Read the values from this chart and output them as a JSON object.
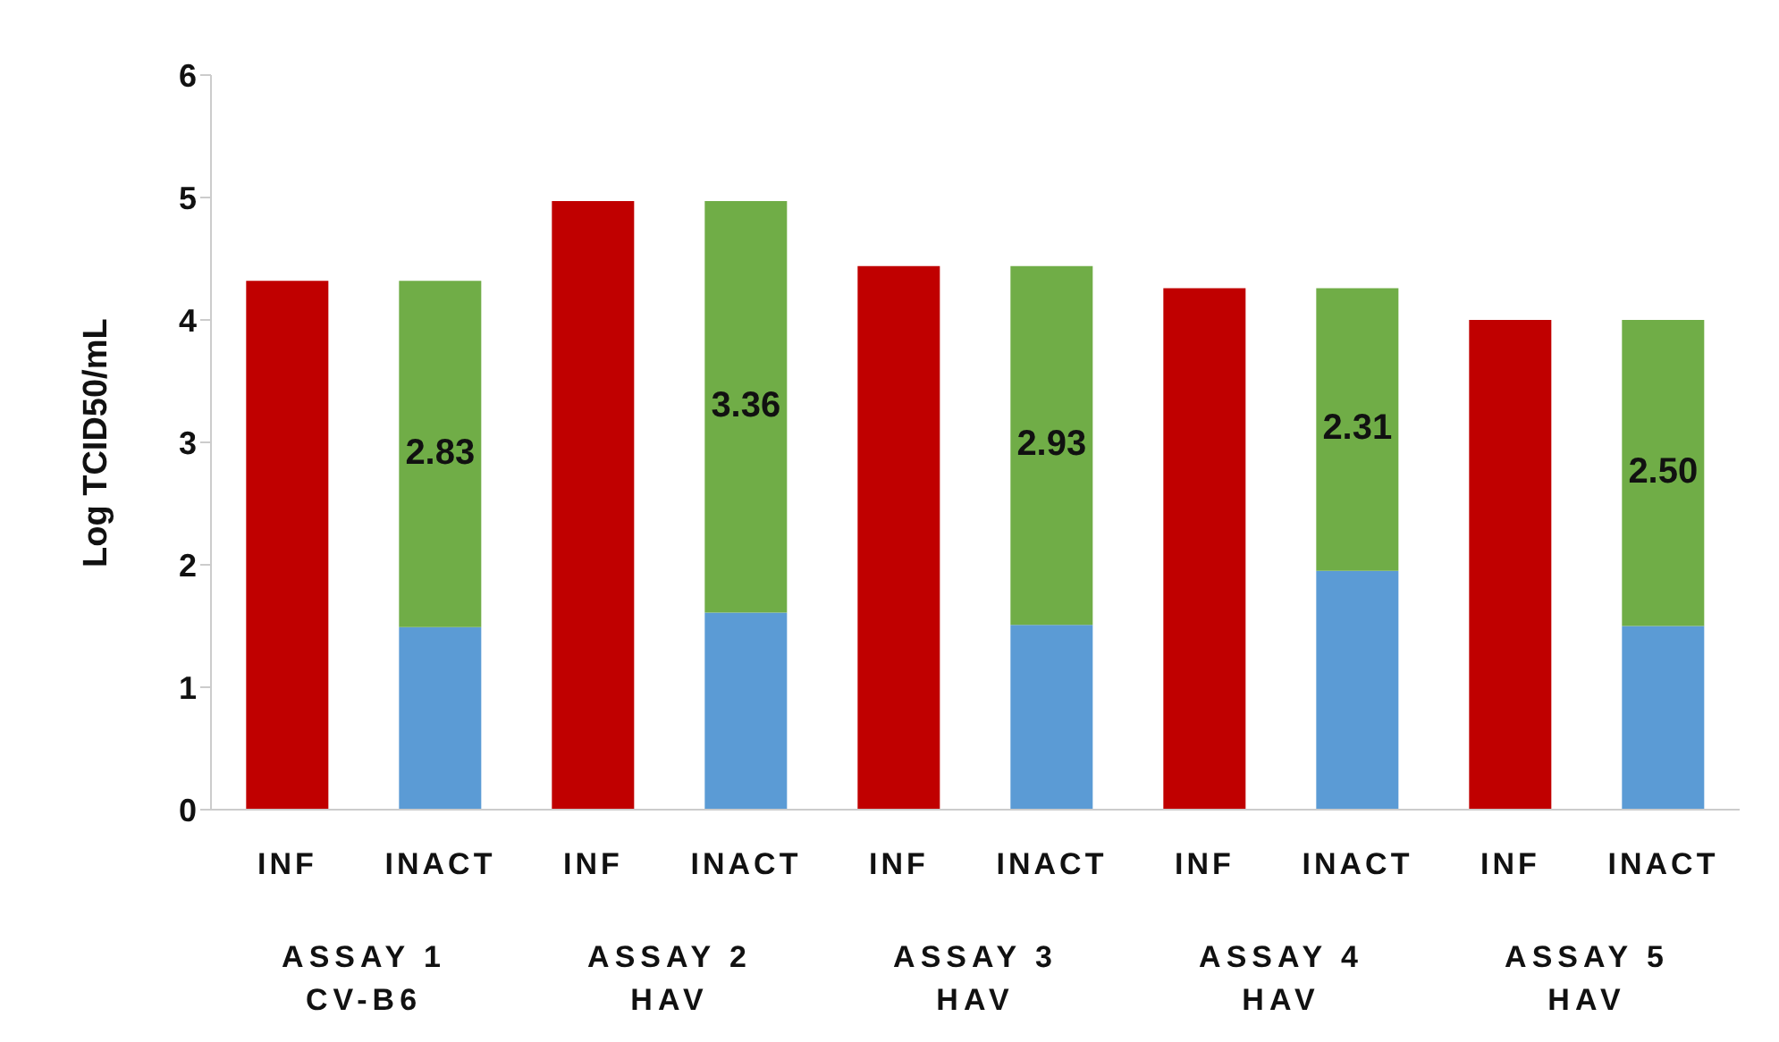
{
  "chart_data": {
    "type": "bar",
    "stacked": true,
    "ylabel": "Log TCID50/mL",
    "categories": [
      "INF",
      "INACT",
      "INF",
      "INACT",
      "INF",
      "INACT",
      "INF",
      "INACT",
      "INF",
      "INACT"
    ],
    "series": [
      {
        "color": "#c00000",
        "values": [
          4.32,
          null,
          4.97,
          null,
          4.44,
          null,
          4.26,
          null,
          4.0,
          null
        ]
      },
      {
        "color": "#5b9bd5",
        "values": [
          null,
          1.49,
          null,
          1.61,
          null,
          1.51,
          null,
          1.95,
          null,
          1.5
        ]
      },
      {
        "color": "#70ad47",
        "values": [
          null,
          2.83,
          null,
          3.36,
          null,
          2.93,
          null,
          2.31,
          null,
          2.5
        ],
        "value_labels": [
          null,
          "2.83",
          null,
          "3.36",
          null,
          "2.93",
          null,
          "2.31",
          null,
          "2.50"
        ]
      }
    ],
    "annotations": [
      "ASSAY 1\nCV-B6",
      "ASSAY 2\nHAV",
      "ASSAY 3\nHAV",
      "ASSAY 4\nHAV",
      "ASSAY 5\nHAV"
    ],
    "ylim": [
      0,
      6
    ],
    "yticks": [
      0,
      1,
      2,
      3,
      4,
      5,
      6
    ],
    "grid": false,
    "legend": false
  }
}
